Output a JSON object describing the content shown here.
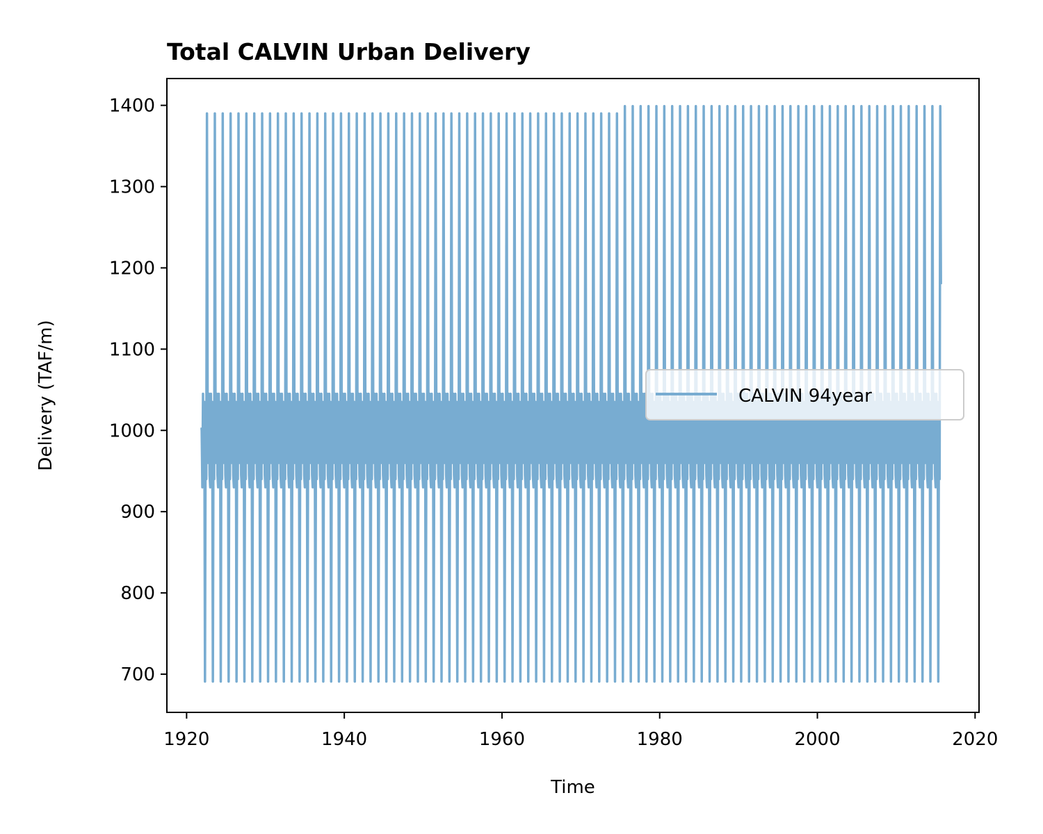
{
  "chart_data": {
    "type": "line",
    "title": "Total CALVIN Urban Delivery",
    "xlabel": "Time",
    "ylabel": "Delivery (TAF/m)",
    "xlim": [
      1917.5,
      2020.5
    ],
    "ylim": [
      653,
      1433
    ],
    "xticks": [
      1920,
      1940,
      1960,
      1980,
      2000,
      2020
    ],
    "yticks": [
      700,
      800,
      900,
      1000,
      1100,
      1200,
      1300,
      1400
    ],
    "grid": false,
    "legend_position": "center-right",
    "series": [
      {
        "name": "CALVIN 94year",
        "color": "#78acd1",
        "time_range": [
          "1921-10",
          "2015-09"
        ],
        "resolution": "monthly",
        "cycle": "annual",
        "initial_value": 1002,
        "annual_peak_1921_1974": 1390,
        "annual_peak_1975_2015": 1399,
        "annual_trough": 690,
        "dense_band": [
          930,
          1045
        ],
        "final_value": 1180
      }
    ]
  }
}
